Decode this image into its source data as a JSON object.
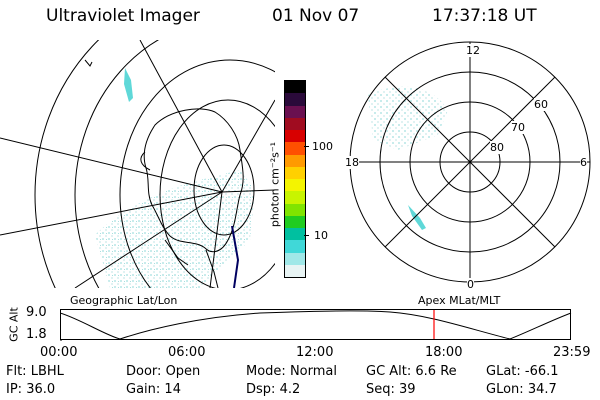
{
  "header": {
    "instrument": "Ultraviolet Imager",
    "date": "01 Nov 07",
    "time": "17:37:18 UT"
  },
  "colorbar": {
    "unit_label": "photon cm⁻²s⁻¹",
    "ticks": [
      "100",
      "10"
    ],
    "colors": [
      "#000000",
      "#2a0a3a",
      "#6a1050",
      "#a00c20",
      "#d80000",
      "#ff5000",
      "#ff9a00",
      "#ffd000",
      "#f4f400",
      "#c8f400",
      "#80e400",
      "#20cc20",
      "#00c0a0",
      "#40d8d8",
      "#a0e8e8",
      "#e8f4f4"
    ]
  },
  "polar_plot": {
    "mlt_labels": {
      "top": "12",
      "left": "18",
      "right": "6",
      "bottom": "0"
    },
    "lat_labels": [
      "60",
      "70",
      "80"
    ]
  },
  "altitude_chart": {
    "left_title": "Geographic Lat/Lon",
    "right_title": "Apex MLat/MLT",
    "ylabel": "GC Alt",
    "yticks": [
      "9.0",
      "1.8"
    ],
    "xticks": [
      "00:00",
      "06:00",
      "12:00",
      "18:00",
      "23:59"
    ],
    "current_marker_color": "#ff0000"
  },
  "status": {
    "row1": [
      {
        "label": "Flt:",
        "value": "LBHL"
      },
      {
        "label": "Door:",
        "value": "Open"
      },
      {
        "label": "Mode:",
        "value": "Normal"
      },
      {
        "label": "GC Alt:",
        "value": "6.6 Re"
      },
      {
        "label": "GLat:",
        "value": "-66.1"
      }
    ],
    "row2": [
      {
        "label": "IP:",
        "value": "36.0"
      },
      {
        "label": "Gain:",
        "value": "14"
      },
      {
        "label": "Dsp:",
        "value": "4.2"
      },
      {
        "label": "Seq:",
        "value": "39"
      },
      {
        "label": "GLon:",
        "value": "34.7"
      }
    ]
  }
}
